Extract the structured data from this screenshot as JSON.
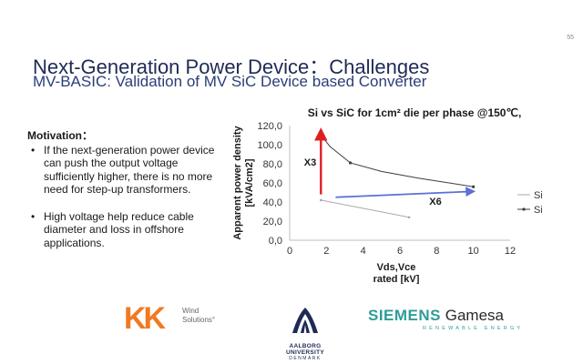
{
  "slide": {
    "page_number": "55",
    "title": "Next-Generation Power Device：Challenges",
    "subtitle": "MV-BASIC: Validation of MV SiC Device based Converter"
  },
  "motivation": {
    "heading": "Motivation：",
    "bullets": [
      "If the next-generation power device can push the output voltage sufficiently higher, there is no more need for step-up transformers.",
      "High voltage help reduce cable diameter and loss in offshore applications."
    ]
  },
  "chart_data": {
    "type": "line",
    "title": "Si vs SiC for 1cm² die per phase @150℃,",
    "xlabel": "Vds,Vce\nrated [kV]",
    "ylabel": "Apparent power density\n[kVA/cm2]",
    "xlim": [
      0,
      12
    ],
    "ylim": [
      0,
      120
    ],
    "xticks": [
      "0",
      "2",
      "4",
      "6",
      "8",
      "10",
      "12"
    ],
    "yticks": [
      "0,0",
      "20,0",
      "40,0",
      "60,0",
      "80,0",
      "100,0",
      "120,0"
    ],
    "grid": false,
    "legend_position": "right",
    "series": [
      {
        "name": "Si",
        "color": "#a9a9a9",
        "marker": "none",
        "x": [
          1.7,
          6.5
        ],
        "y": [
          42,
          24
        ]
      },
      {
        "name": "SiC",
        "color": "#3d3d3d",
        "marker": "dot",
        "x": [
          1.7,
          2.2,
          3.3,
          5.0,
          7.0,
          10.0
        ],
        "y": [
          110,
          98,
          81,
          72,
          65,
          56
        ]
      }
    ],
    "annotations": [
      {
        "text": "X3",
        "color": "#e02020",
        "x_from": 1.7,
        "y_from": 48,
        "x_to": 1.7,
        "y_to": 114,
        "label_x": 1.45,
        "label_y": 78
      },
      {
        "text": "X6",
        "color": "#5b6fd8",
        "x_from": 2.5,
        "y_from": 45,
        "x_to": 10.0,
        "y_to": 51,
        "label_x": 7.6,
        "label_y": 37
      }
    ]
  },
  "logos": {
    "kk": {
      "mark": "KK",
      "line1": "Wind",
      "line2": "Solutions°"
    },
    "aau": {
      "name": "AALBORG UNIVERSITY",
      "country": "DENMARK"
    },
    "siemens": {
      "part1": "SIEMENS",
      "part2": " Gamesa",
      "tagline": "RENEWABLE ENERGY"
    }
  }
}
